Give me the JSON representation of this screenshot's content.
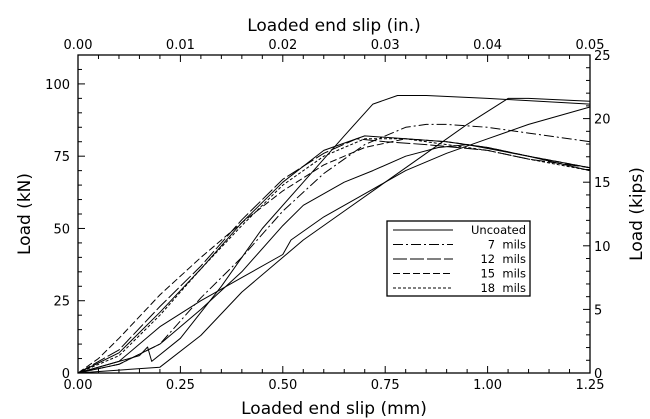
{
  "chart_data": {
    "type": "line",
    "xlabel": "Loaded end slip (mm)",
    "ylabel": "Load (kN)",
    "x2label": "Loaded end slip (in.)",
    "y2label": "Load (kips)",
    "xlim": [
      0,
      1.25
    ],
    "ylim": [
      0,
      110
    ],
    "x2lim": [
      0,
      0.05
    ],
    "y2lim": [
      0,
      25
    ],
    "xticks": [
      0,
      0.25,
      0.5,
      0.75,
      1.0,
      1.25
    ],
    "xtick_labels": [
      "0.00",
      "0.25",
      "0.50",
      "0.75",
      "1.00",
      "1.25"
    ],
    "yticks": [
      0,
      25,
      50,
      75,
      100
    ],
    "ytick_labels": [
      "0",
      "25",
      "50",
      "75",
      "100"
    ],
    "x2ticks": [
      0,
      0.01,
      0.02,
      0.03,
      0.04,
      0.05
    ],
    "x2tick_labels": [
      "0.00",
      "0.01",
      "0.02",
      "0.03",
      "0.04",
      "0.05"
    ],
    "y2ticks": [
      0,
      5,
      10,
      15,
      20,
      25
    ],
    "y2tick_labels": [
      "0",
      "5",
      "10",
      "15",
      "20",
      "25"
    ],
    "grid": false,
    "legend_position": "lower-right",
    "series": [
      {
        "name": "Uncoated",
        "dash": "solid",
        "x": [
          0,
          0.05,
          0.1,
          0.15,
          0.17,
          0.18,
          0.25,
          0.35,
          0.45,
          0.55,
          0.65,
          0.72,
          0.78,
          0.85,
          1.0,
          1.25
        ],
        "y": [
          0,
          2,
          4,
          6,
          9,
          4,
          12,
          30,
          50,
          66,
          82,
          93,
          96,
          96,
          95,
          93
        ]
      },
      {
        "name": "Uncoated",
        "dash": "solid",
        "x": [
          0,
          0.1,
          0.2,
          0.3,
          0.4,
          0.5,
          0.55,
          0.65,
          0.75,
          0.85,
          0.95,
          1.05,
          1.1,
          1.25
        ],
        "y": [
          0,
          1,
          2,
          13,
          28,
          40,
          46,
          56,
          66,
          76,
          86,
          95,
          95,
          94
        ]
      },
      {
        "name": "Uncoated",
        "dash": "solid",
        "x": [
          0,
          0.1,
          0.2,
          0.3,
          0.4,
          0.5,
          0.55,
          0.65,
          0.72,
          0.8,
          0.88,
          0.95,
          1.1,
          1.25
        ],
        "y": [
          0,
          3,
          10,
          22,
          35,
          51,
          58,
          66,
          70,
          75,
          78,
          79,
          75,
          71
        ]
      },
      {
        "name": "Uncoated",
        "dash": "solid",
        "x": [
          0,
          0.1,
          0.2,
          0.3,
          0.4,
          0.5,
          0.52,
          0.6,
          0.7,
          0.8,
          0.9,
          1.0,
          1.1,
          1.25
        ],
        "y": [
          0,
          4,
          16,
          25,
          33,
          41,
          46,
          54,
          62,
          70,
          76,
          81,
          86,
          92
        ]
      },
      {
        "name": "Uncoated",
        "dash": "solid",
        "x": [
          0,
          0.1,
          0.2,
          0.3,
          0.4,
          0.5,
          0.6,
          0.7,
          0.8,
          0.9,
          1.0,
          1.1,
          1.25
        ],
        "y": [
          0,
          7,
          21,
          36,
          52,
          66,
          77,
          82,
          81,
          80,
          78,
          75,
          70
        ]
      },
      {
        "name": "7 mils",
        "dash": "dash-dot",
        "x": [
          0,
          0.1,
          0.2,
          0.3,
          0.4,
          0.5,
          0.6,
          0.7,
          0.8,
          0.85,
          0.9,
          1.0,
          1.1,
          1.25
        ],
        "y": [
          0,
          3,
          10,
          26,
          40,
          56,
          69,
          79,
          85,
          86,
          86,
          85,
          83,
          80
        ]
      },
      {
        "name": "12 mils",
        "dash": "long-dash",
        "x": [
          0,
          0.1,
          0.2,
          0.3,
          0.4,
          0.5,
          0.6,
          0.68,
          0.75,
          0.85,
          1.0,
          1.1,
          1.25
        ],
        "y": [
          0,
          8,
          23,
          37,
          53,
          67,
          76,
          81,
          80,
          79,
          77,
          74,
          71
        ]
      },
      {
        "name": "15 mils",
        "dash": "dash",
        "x": [
          0,
          0.05,
          0.1,
          0.2,
          0.3,
          0.4,
          0.5,
          0.6,
          0.7,
          0.8,
          0.9,
          1.0,
          1.1,
          1.25
        ],
        "y": [
          0,
          5,
          12,
          27,
          40,
          52,
          63,
          72,
          78,
          81,
          80,
          78,
          75,
          71
        ]
      },
      {
        "name": "18 mils",
        "dash": "short-dash",
        "x": [
          0,
          0.1,
          0.2,
          0.3,
          0.4,
          0.5,
          0.6,
          0.7,
          0.8,
          0.9,
          1.0,
          1.1,
          1.25
        ],
        "y": [
          0,
          6,
          20,
          36,
          51,
          65,
          75,
          81,
          81,
          79,
          77,
          74,
          70
        ]
      }
    ],
    "legend": [
      {
        "label": "Uncoated",
        "dash": "solid"
      },
      {
        "label": "7  mils",
        "dash": "dash-dot"
      },
      {
        "label": "12  mils",
        "dash": "long-dash"
      },
      {
        "label": "15  mils",
        "dash": "dash"
      },
      {
        "label": "18  mils",
        "dash": "short-dash"
      }
    ]
  }
}
